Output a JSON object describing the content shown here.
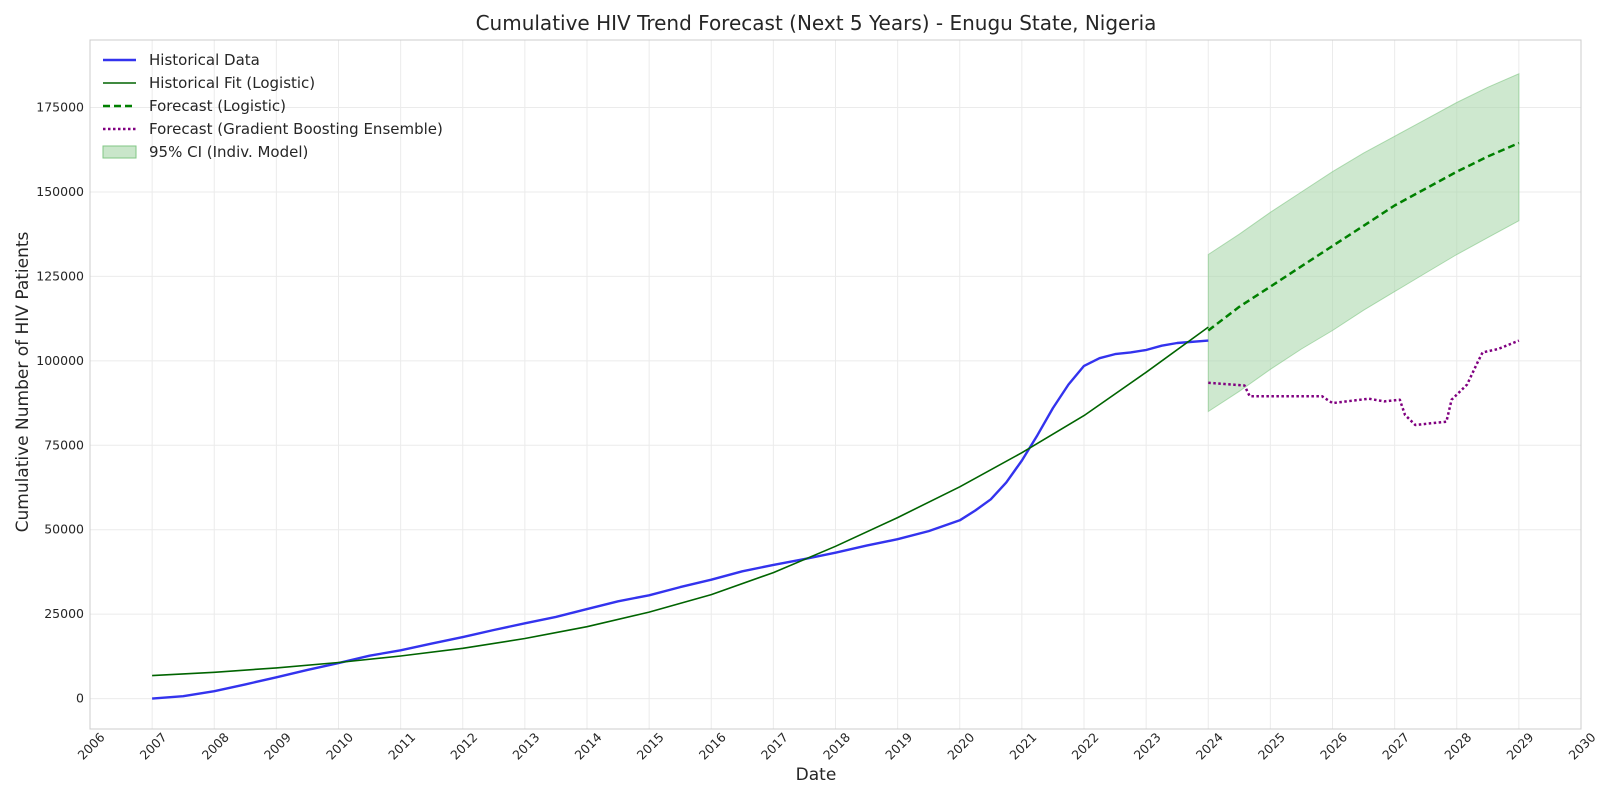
{
  "chart_data": {
    "type": "line",
    "title": "Cumulative HIV Trend Forecast (Next 5 Years) - Enugu State, Nigeria",
    "xlabel": "Date",
    "ylabel": "Cumulative Number of HIV Patients",
    "xlim": [
      "2006-01-01",
      "2030-01-01"
    ],
    "ylim": [
      -9000,
      195000
    ],
    "x_ticks": [
      "2006",
      "2007",
      "2008",
      "2009",
      "2010",
      "2011",
      "2012",
      "2013",
      "2014",
      "2015",
      "2016",
      "2017",
      "2018",
      "2019",
      "2020",
      "2021",
      "2022",
      "2023",
      "2024",
      "2025",
      "2026",
      "2027",
      "2028",
      "2029",
      "2030"
    ],
    "y_ticks": [
      0,
      25000,
      50000,
      75000,
      100000,
      125000,
      150000,
      175000
    ],
    "grid": true,
    "legend_position": "top-left",
    "series": [
      {
        "name": "Historical Data",
        "style": "solid",
        "color": "#3333ee",
        "x": [
          "2007-01",
          "2007-07",
          "2008-01",
          "2008-07",
          "2009-01",
          "2009-07",
          "2010-01",
          "2010-07",
          "2011-01",
          "2011-07",
          "2012-01",
          "2012-07",
          "2013-01",
          "2013-07",
          "2014-01",
          "2014-07",
          "2015-01",
          "2015-07",
          "2016-01",
          "2016-07",
          "2017-01",
          "2017-07",
          "2018-01",
          "2018-07",
          "2019-01",
          "2019-07",
          "2020-01",
          "2020-04",
          "2020-07",
          "2020-10",
          "2021-01",
          "2021-04",
          "2021-07",
          "2021-10",
          "2022-01",
          "2022-04",
          "2022-07",
          "2022-10",
          "2023-01",
          "2023-04",
          "2023-07",
          "2024-01"
        ],
        "y": [
          0,
          700,
          2200,
          4200,
          6300,
          8500,
          10500,
          12700,
          14300,
          16300,
          18200,
          20300,
          22300,
          24200,
          26500,
          28800,
          30600,
          33000,
          35200,
          37700,
          39600,
          41300,
          43200,
          45300,
          47200,
          49600,
          52800,
          55700,
          59000,
          64000,
          70500,
          78000,
          86000,
          93000,
          98500,
          100800,
          102000,
          102500,
          103200,
          104500,
          105300,
          106000
        ]
      },
      {
        "name": "Historical Fit (Logistic)",
        "style": "solid",
        "color": "#006400",
        "x": [
          "2007-01",
          "2008-01",
          "2009-01",
          "2010-01",
          "2011-01",
          "2012-01",
          "2013-01",
          "2014-01",
          "2015-01",
          "2016-01",
          "2017-01",
          "2018-01",
          "2019-01",
          "2020-01",
          "2021-01",
          "2022-01",
          "2023-01",
          "2024-01"
        ],
        "y": [
          6800,
          7800,
          9100,
          10700,
          12600,
          14900,
          17800,
          21300,
          25600,
          30800,
          37300,
          45100,
          53600,
          62700,
          72800,
          83800,
          96600,
          110000
        ]
      },
      {
        "name": "Forecast (Logistic)",
        "style": "dashed",
        "color": "#008000",
        "x": [
          "2024-01",
          "2024-07",
          "2025-01",
          "2025-07",
          "2026-01",
          "2026-07",
          "2027-01",
          "2027-07",
          "2028-01",
          "2028-07",
          "2029-01"
        ],
        "y": [
          109000,
          116000,
          122000,
          128000,
          134000,
          140000,
          146000,
          151000,
          156000,
          160500,
          164500
        ]
      },
      {
        "name": "Forecast (Gradient Boosting Ensemble)",
        "style": "dotted",
        "color": "#800080",
        "x": [
          "2024-01",
          "2024-08",
          "2024-09",
          "2025-01",
          "2025-11",
          "2026-01",
          "2026-08",
          "2026-11",
          "2027-02",
          "2027-03",
          "2027-05",
          "2027-08",
          "2027-11",
          "2027-12",
          "2028-03",
          "2028-05",
          "2028-06",
          "2028-09",
          "2029-01"
        ],
        "y": [
          93500,
          92700,
          89500,
          89500,
          89500,
          87500,
          88800,
          88000,
          88500,
          84000,
          81000,
          81500,
          82000,
          88500,
          93000,
          99500,
          102500,
          103500,
          106000
        ]
      }
    ],
    "confidence_band": {
      "name": "95% CI (Indiv. Model)",
      "color": "#a5d6a7",
      "x": [
        "2024-01",
        "2024-07",
        "2025-01",
        "2025-07",
        "2026-01",
        "2026-07",
        "2027-01",
        "2027-07",
        "2028-01",
        "2028-07",
        "2029-01"
      ],
      "lower": [
        85000,
        91000,
        97500,
        103500,
        109000,
        115000,
        120500,
        126000,
        131500,
        136500,
        141500
      ],
      "upper": [
        131500,
        137500,
        144000,
        150000,
        156000,
        161500,
        166500,
        171500,
        176500,
        181000,
        185000
      ]
    }
  }
}
